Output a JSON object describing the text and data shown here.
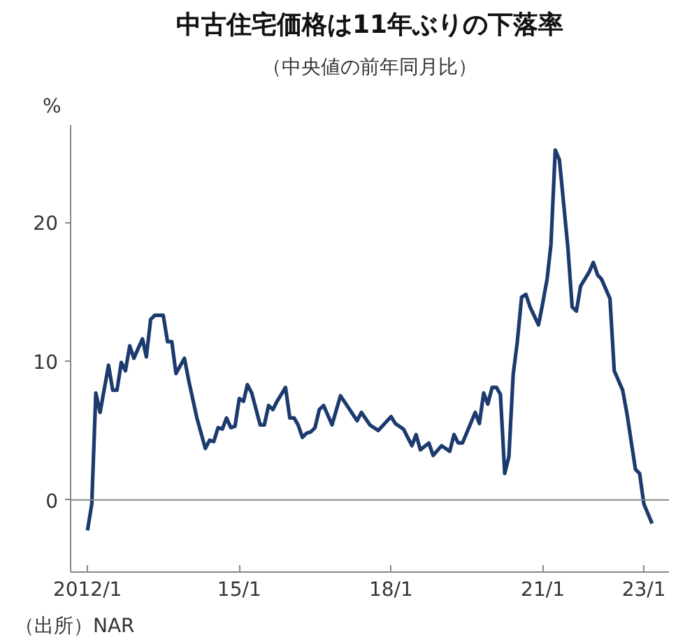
{
  "chart_data": {
    "type": "line",
    "title": "中古住宅価格は11年ぶりの下落率",
    "subtitle": "（中央値の前年同月比）",
    "ylabel": "%",
    "annotations": [
      "（出所）NAR"
    ],
    "x": [
      "2012-01",
      "2012-02",
      "2012-03",
      "2012-04",
      "2012-06",
      "2012-07",
      "2012-08",
      "2012-09",
      "2012-10",
      "2012-11",
      "2012-12",
      "2013-02",
      "2013-03",
      "2013-04",
      "2013-05",
      "2013-07",
      "2013-08",
      "2013-09",
      "2013-10",
      "2013-12",
      "2014-01",
      "2014-03",
      "2014-05",
      "2014-06",
      "2014-07",
      "2014-08",
      "2014-09",
      "2014-10",
      "2014-11",
      "2014-12",
      "2015-01",
      "2015-02",
      "2015-03",
      "2015-04",
      "2015-06",
      "2015-07",
      "2015-08",
      "2015-09",
      "2015-10",
      "2015-12",
      "2016-01",
      "2016-02",
      "2016-03",
      "2016-04",
      "2016-05",
      "2016-06",
      "2016-07",
      "2016-08",
      "2016-09",
      "2016-11",
      "2017-01",
      "2017-05",
      "2017-06",
      "2017-08",
      "2017-10",
      "2018-01",
      "2018-02",
      "2018-04",
      "2018-06",
      "2018-07",
      "2018-08",
      "2018-10",
      "2018-11",
      "2019-01",
      "2019-03",
      "2019-04",
      "2019-05",
      "2019-06",
      "2019-09",
      "2019-10",
      "2019-11",
      "2019-12",
      "2020-01",
      "2020-02",
      "2020-03",
      "2020-04",
      "2020-05",
      "2020-06",
      "2020-07",
      "2020-08",
      "2020-09",
      "2020-10",
      "2020-12",
      "2021-01",
      "2021-02",
      "2021-03",
      "2021-04",
      "2021-05",
      "2021-07",
      "2021-08",
      "2021-09",
      "2021-10",
      "2021-12",
      "2022-01",
      "2022-02",
      "2022-03",
      "2022-05",
      "2022-06",
      "2022-08",
      "2022-09",
      "2022-11",
      "2022-12",
      "2023-01",
      "2023-03"
    ],
    "series": [
      {
        "color": "#1c3a6e",
        "values": [
          -2.2,
          -0.3,
          7.7,
          6.3,
          9.7,
          7.9,
          7.9,
          9.9,
          9.3,
          11.1,
          10.2,
          11.6,
          10.3,
          13.0,
          13.3,
          13.3,
          11.4,
          11.4,
          9.1,
          10.2,
          8.6,
          5.9,
          3.7,
          4.3,
          4.2,
          5.2,
          5.1,
          5.9,
          5.2,
          5.3,
          7.3,
          7.1,
          8.3,
          7.7,
          5.4,
          5.4,
          6.8,
          6.5,
          7.1,
          8.1,
          5.9,
          5.9,
          5.4,
          4.5,
          4.8,
          4.9,
          5.2,
          6.5,
          6.8,
          5.4,
          7.5,
          5.7,
          6.3,
          5.4,
          5.0,
          6.0,
          5.5,
          5.1,
          3.9,
          4.7,
          3.6,
          4.1,
          3.2,
          3.9,
          3.5,
          4.7,
          4.1,
          4.1,
          6.3,
          5.5,
          7.7,
          6.9,
          8.1,
          8.1,
          7.6,
          1.9,
          3.1,
          9.0,
          11.4,
          14.6,
          14.8,
          13.9,
          12.6,
          14.2,
          15.9,
          18.4,
          25.2,
          24.5,
          18.2,
          13.9,
          13.6,
          15.4,
          16.4,
          17.1,
          16.2,
          15.9,
          14.5,
          9.3,
          7.9,
          6.2,
          2.2,
          1.9,
          -0.3,
          -1.7
        ]
      }
    ],
    "xlim": [
      "2011-09",
      "2023-07"
    ],
    "ylim": [
      -5.2,
      27
    ],
    "xticks": [
      {
        "value": "2012-01",
        "label": "2012/1"
      },
      {
        "value": "2015-01",
        "label": "15/1"
      },
      {
        "value": "2018-01",
        "label": "18/1"
      },
      {
        "value": "2021-01",
        "label": "21/1"
      },
      {
        "value": "2023-01",
        "label": "23/1"
      }
    ],
    "yticks": [
      0,
      10,
      20
    ],
    "ref_lines": [
      {
        "axis": "y",
        "value": 0,
        "color": "#888888"
      }
    ],
    "grid": false
  }
}
